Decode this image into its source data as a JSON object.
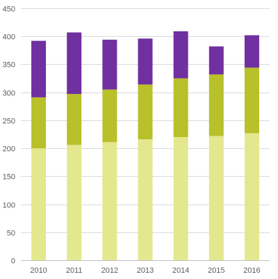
{
  "chart_data": {
    "type": "bar",
    "stacked": true,
    "title": "",
    "xlabel": "",
    "ylabel": "",
    "categories": [
      "2010",
      "2011",
      "2012",
      "2013",
      "2014",
      "2015",
      "2016"
    ],
    "ylim": [
      0,
      450
    ],
    "yticks": [
      0,
      50,
      100,
      150,
      200,
      250,
      300,
      350,
      400,
      450
    ],
    "grid": true,
    "legend": "none",
    "series": [
      {
        "color": "#e3e88e",
        "values": [
          200,
          206,
          211,
          216,
          220,
          222,
          227
        ]
      },
      {
        "color": "#b8c02a",
        "values": [
          91,
          91,
          94,
          98,
          105,
          110,
          117
        ]
      },
      {
        "color": "#7030a0",
        "values": [
          101,
          110,
          89,
          82,
          84,
          50,
          58
        ]
      }
    ]
  }
}
